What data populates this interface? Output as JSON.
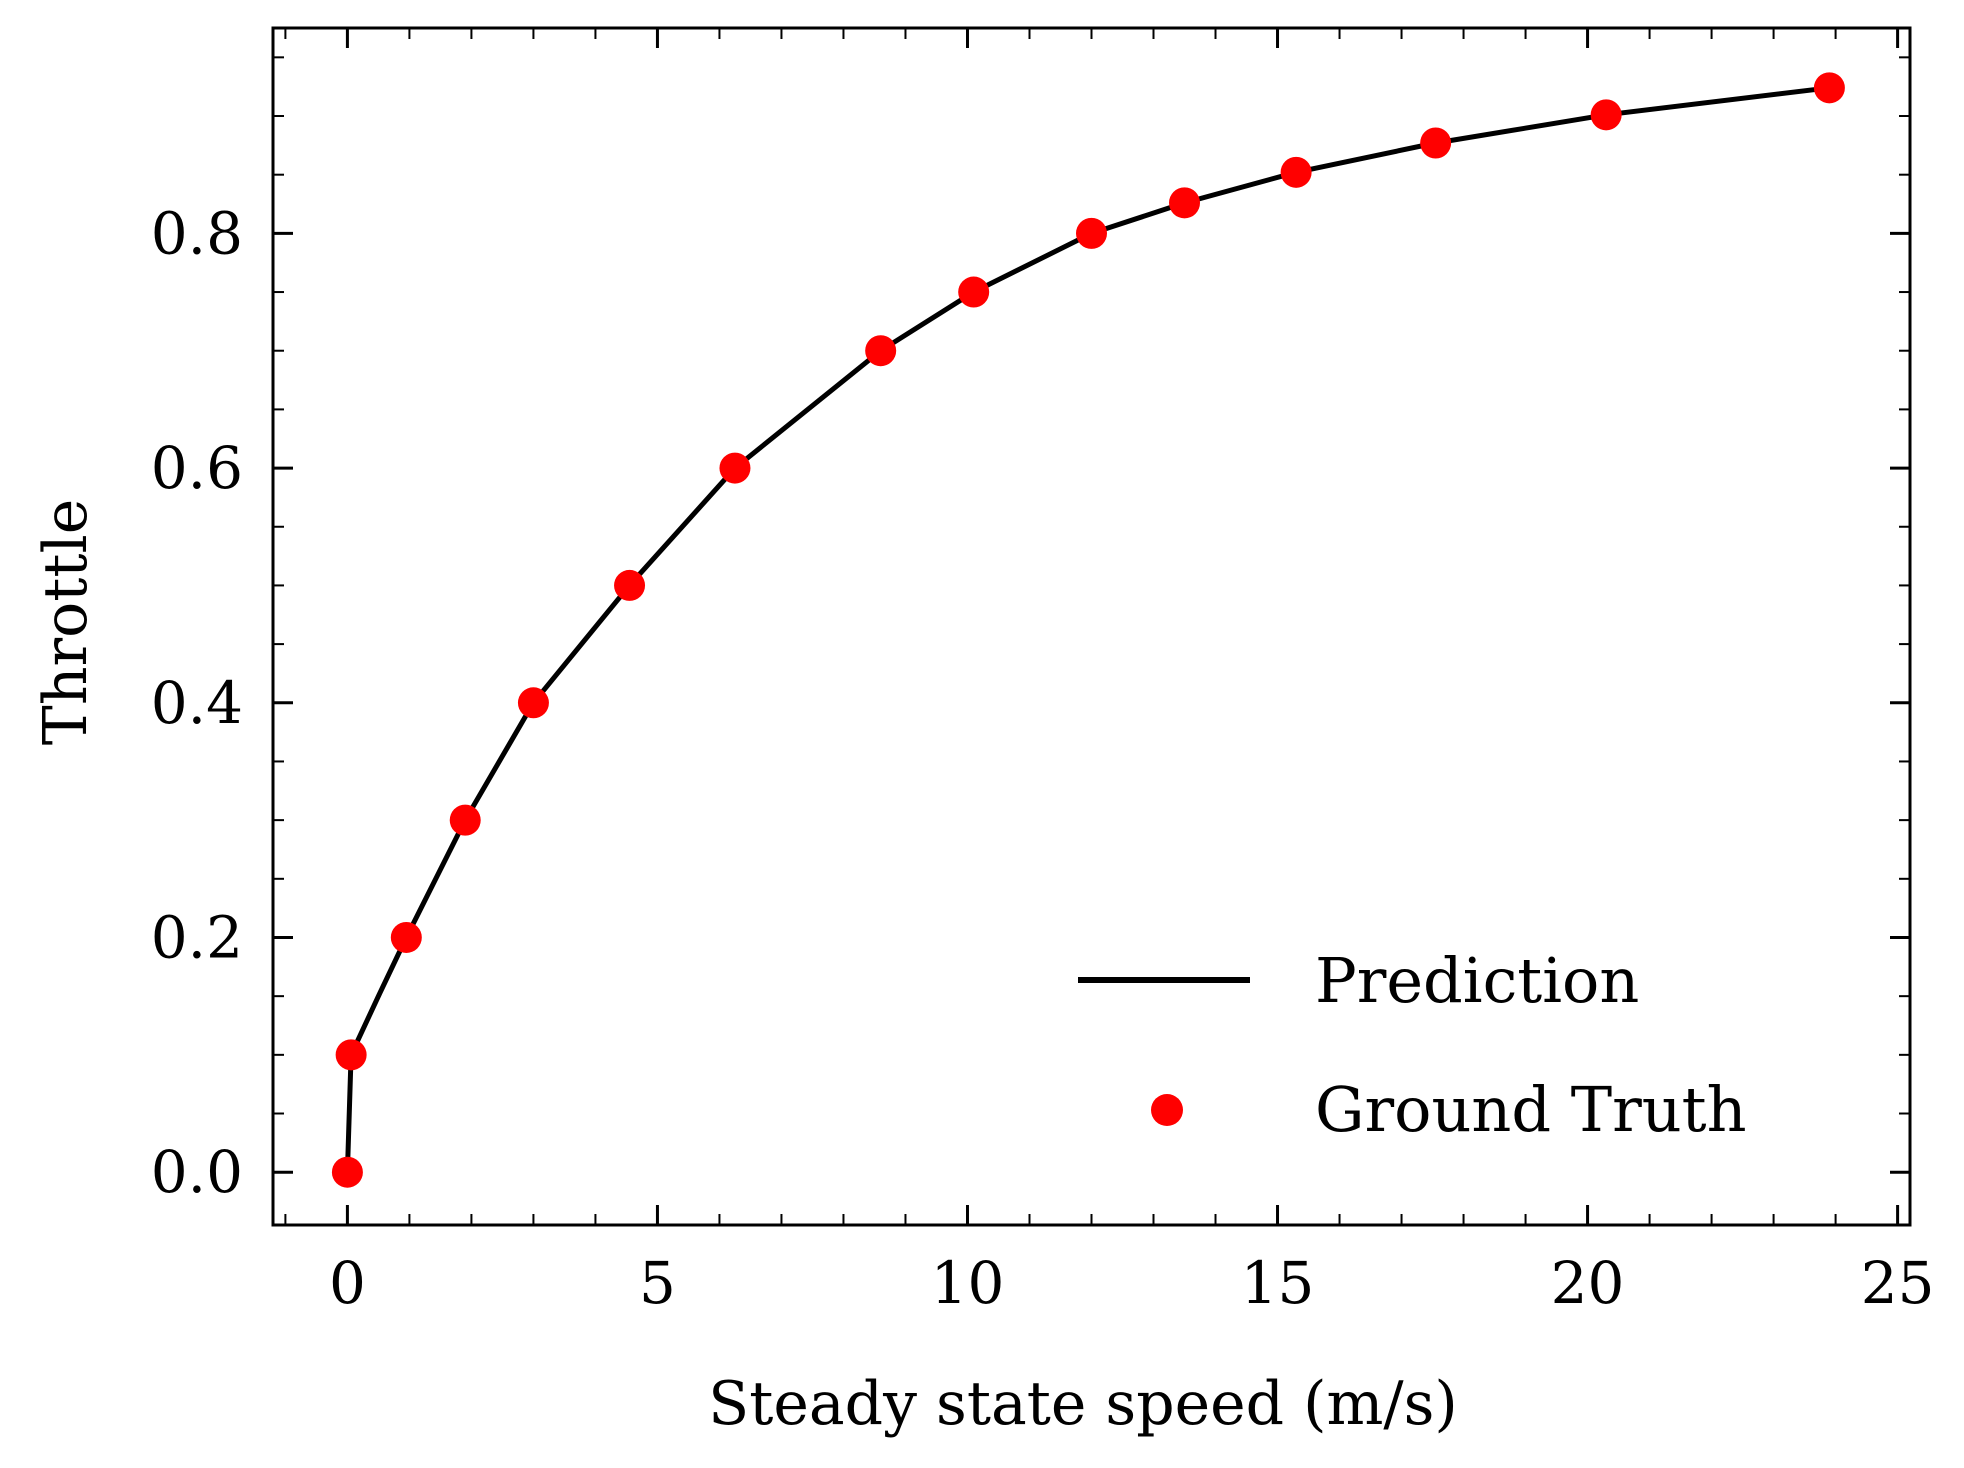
{
  "chart_data": {
    "type": "line",
    "xlabel": "Steady state speed (m/s)",
    "ylabel": "Throttle",
    "xlim": [
      -1.2,
      25.2
    ],
    "ylim": [
      -0.045,
      0.975
    ],
    "x_ticks": [
      0,
      5,
      10,
      15,
      20,
      25
    ],
    "x_tick_labels": [
      "0",
      "5",
      "10",
      "15",
      "20",
      "25"
    ],
    "y_ticks": [
      0.0,
      0.2,
      0.4,
      0.6,
      0.8
    ],
    "y_tick_labels": [
      "0.0",
      "0.2",
      "0.4",
      "0.6",
      "0.8"
    ],
    "x_minor_step": 1,
    "y_minor_step": 0.05,
    "grid": false,
    "legend_position": "lower-right",
    "series": [
      {
        "name": "Prediction",
        "kind": "line",
        "color": "#000000",
        "x": [
          0.0,
          0.06,
          0.5,
          0.95,
          1.9,
          3.0,
          4.55,
          6.25,
          8.6,
          10.1,
          12.0,
          13.5,
          15.3,
          17.55,
          20.3,
          23.9
        ],
        "y": [
          0.0,
          0.1,
          0.15,
          0.2,
          0.3,
          0.4,
          0.5,
          0.6,
          0.7,
          0.75,
          0.8,
          0.826,
          0.852,
          0.877,
          0.901,
          0.924
        ]
      },
      {
        "name": "Ground Truth",
        "kind": "scatter",
        "color": "#ff0000",
        "x": [
          0.0,
          0.06,
          0.95,
          1.9,
          3.0,
          4.55,
          6.25,
          8.6,
          10.1,
          12.0,
          13.5,
          15.3,
          17.55,
          20.3,
          23.9
        ],
        "y": [
          0.0,
          0.1,
          0.2,
          0.3,
          0.4,
          0.5,
          0.6,
          0.7,
          0.75,
          0.8,
          0.826,
          0.852,
          0.877,
          0.901,
          0.924
        ]
      }
    ]
  }
}
